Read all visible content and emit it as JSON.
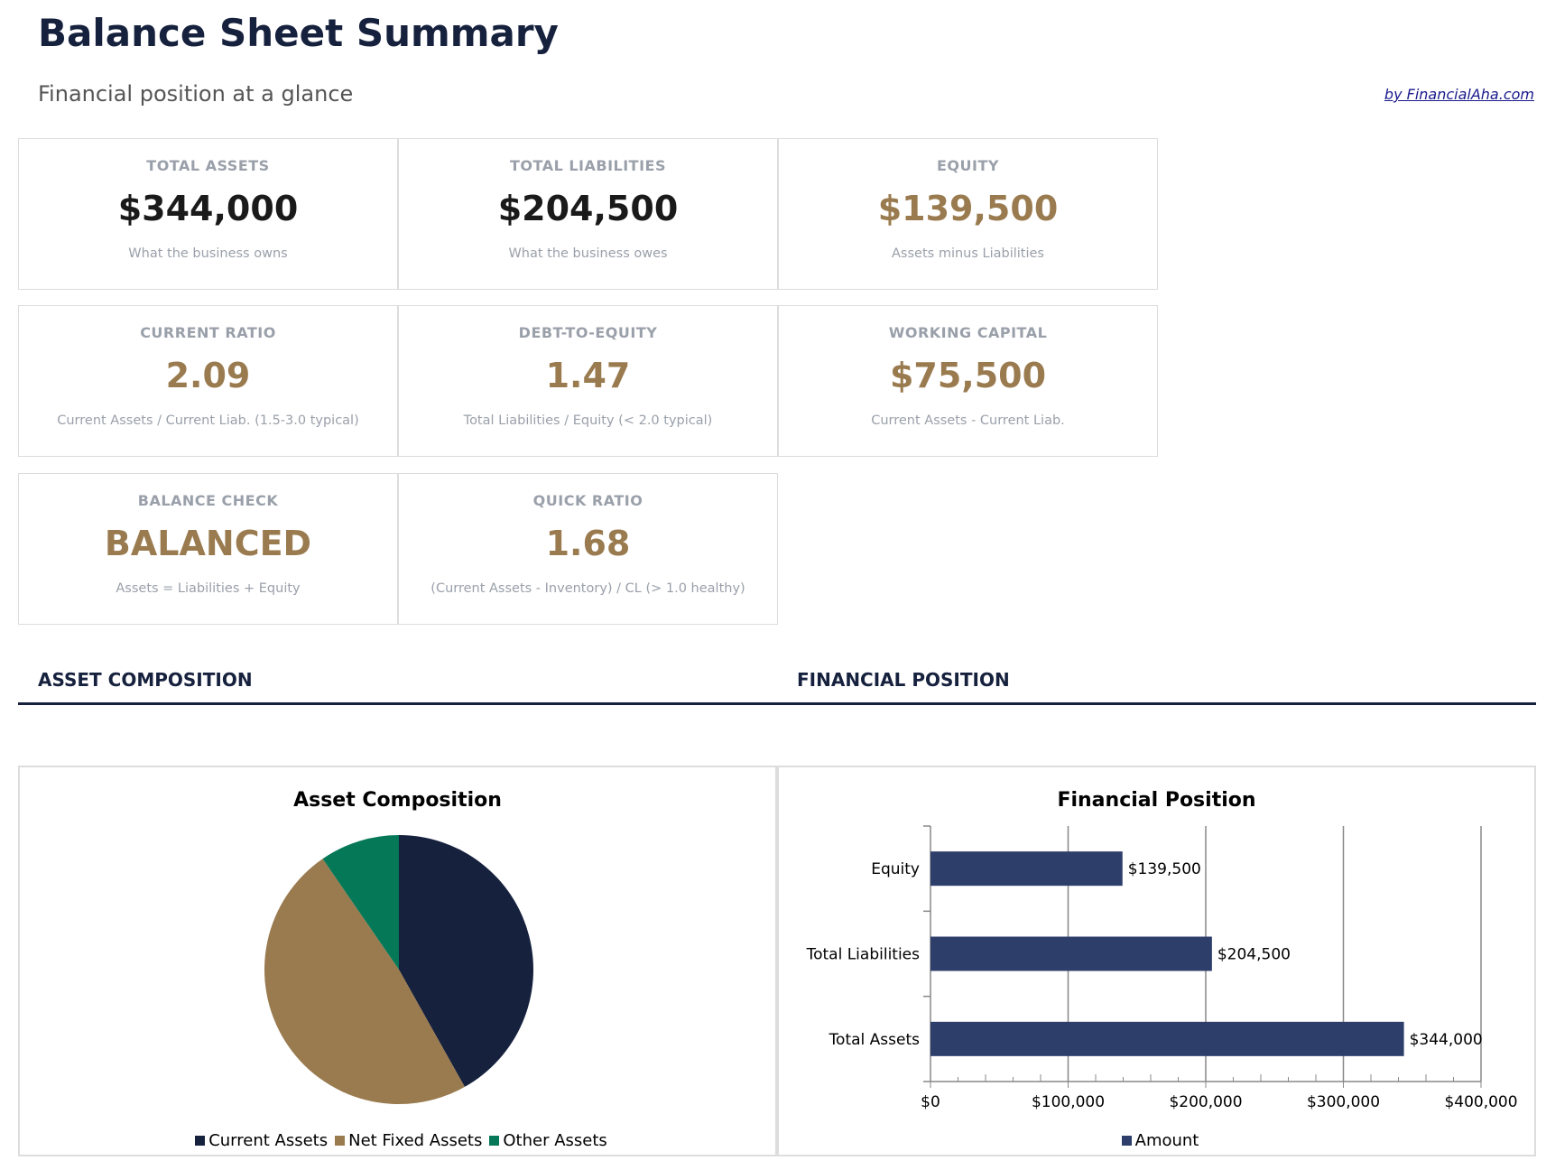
{
  "header": {
    "title": "Balance Sheet Summary",
    "subtitle": "Financial position at a glance",
    "credit": "by FinancialAha.com"
  },
  "cards": [
    {
      "label": "TOTAL ASSETS",
      "value": "$344,000",
      "sub": "What the business owns",
      "color": "#1a1a1a"
    },
    {
      "label": "TOTAL LIABILITIES",
      "value": "$204,500",
      "sub": "What the business owes",
      "color": "#1a1a1a"
    },
    {
      "label": "EQUITY",
      "value": "$139,500",
      "sub": "Assets minus Liabilities",
      "color": "#9a7b4f"
    },
    {
      "label": "CURRENT RATIO",
      "value": "2.09",
      "sub": "Current Assets / Current Liab. (1.5-3.0 typical)",
      "color": "#9a7b4f"
    },
    {
      "label": "DEBT-TO-EQUITY",
      "value": "1.47",
      "sub": "Total Liabilities / Equity (< 2.0 typical)",
      "color": "#9a7b4f"
    },
    {
      "label": "WORKING CAPITAL",
      "value": "$75,500",
      "sub": "Current Assets - Current Liab.",
      "color": "#9a7b4f"
    },
    {
      "label": "BALANCE CHECK",
      "value": "BALANCED",
      "sub": "Assets = Liabilities + Equity",
      "color": "#9a7b4f"
    },
    {
      "label": "QUICK RATIO",
      "value": "1.68",
      "sub": "(Current Assets - Inventory) / CL (> 1.0 healthy)",
      "color": "#9a7b4f"
    }
  ],
  "sections": {
    "left": "ASSET COMPOSITION",
    "right": "FINANCIAL POSITION"
  },
  "chart_data": [
    {
      "type": "pie",
      "title": "Asset Composition",
      "legend_position": "bottom",
      "labels": [
        "Current Assets",
        "Net Fixed Assets",
        "Other Assets"
      ],
      "values": [
        144000,
        167000,
        33000
      ],
      "colors": [
        "#16213e",
        "#9a7b4f",
        "#047857"
      ]
    },
    {
      "type": "bar",
      "orientation": "horizontal",
      "title": "Financial Position",
      "legend_position": "bottom",
      "categories": [
        "Equity",
        "Total Liabilities",
        "Total Assets"
      ],
      "series": [
        {
          "name": "Amount",
          "values": [
            139500,
            204500,
            344000
          ],
          "labels": [
            "$139,500",
            "$204,500",
            "$344,000"
          ]
        }
      ],
      "xlim": [
        0,
        400000
      ],
      "xticks": [
        "$0",
        "$100,000",
        "$200,000",
        "$300,000",
        "$400,000"
      ],
      "grid": true,
      "color": "#2d3e6b"
    }
  ]
}
